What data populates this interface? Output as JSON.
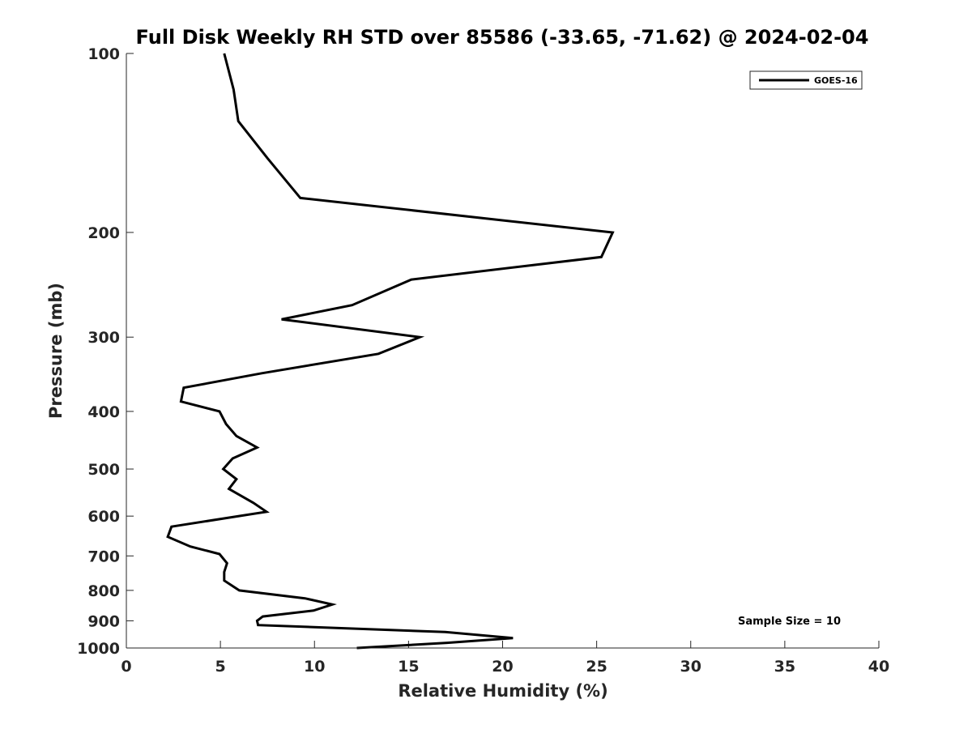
{
  "chart_data": {
    "type": "line",
    "title": "Full Disk Weekly RH STD over 85586 (-33.65, -71.62) @ 2024-02-04",
    "xlabel": "Relative Humidity (%)",
    "ylabel": "Pressure (mb)",
    "xlim": [
      0,
      40
    ],
    "ylim": [
      100,
      1000
    ],
    "y_scale": "log",
    "y_reversed": true,
    "grid": false,
    "legend_position": "top-right",
    "x_ticks": [
      0,
      5,
      10,
      15,
      20,
      25,
      30,
      35,
      40
    ],
    "y_ticks": [
      100,
      200,
      300,
      400,
      500,
      600,
      700,
      800,
      900,
      1000
    ],
    "annotation": "Sample Size = 10",
    "series": [
      {
        "name": "GOES-16",
        "color": "#000000",
        "x": [
          5.2,
          5.7,
          5.95,
          7.5,
          9.25,
          25.85,
          25.25,
          15.15,
          12.0,
          8.25,
          15.6,
          13.4,
          7.2,
          3.05,
          2.9,
          4.95,
          5.3,
          5.85,
          6.95,
          5.65,
          5.15,
          5.85,
          5.45,
          6.75,
          7.45,
          2.4,
          2.2,
          3.4,
          4.95,
          5.35,
          5.2,
          5.2,
          6.0,
          9.5,
          10.95,
          9.95,
          7.25,
          6.95,
          7.0,
          16.95,
          20.55,
          17.05,
          12.25
        ],
        "y": [
          100,
          115,
          130,
          150,
          175,
          200,
          220,
          240,
          265,
          280,
          300,
          320,
          345,
          365,
          385,
          400,
          420,
          440,
          460,
          480,
          500,
          520,
          540,
          570,
          590,
          625,
          650,
          675,
          695,
          720,
          745,
          770,
          800,
          825,
          845,
          865,
          885,
          900,
          915,
          940,
          962,
          980,
          1000
        ]
      }
    ]
  }
}
